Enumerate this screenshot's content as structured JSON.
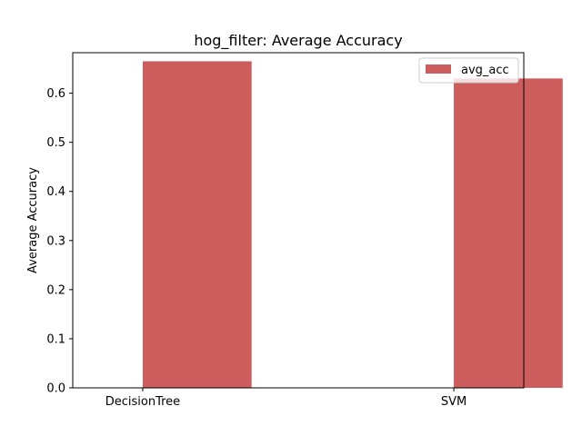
{
  "chart_data": {
    "type": "bar",
    "title": "hog_filter: Average Accuracy",
    "xlabel": "",
    "ylabel": "Average Accuracy",
    "categories": [
      "DecisionTree",
      "SVM"
    ],
    "series": [
      {
        "name": "avg_acc",
        "values": [
          0.665,
          0.63
        ],
        "color": "#cd5c5c"
      }
    ],
    "ylim": [
      0,
      0.6825
    ],
    "yticks": [
      0.0,
      0.1,
      0.2,
      0.3,
      0.4,
      0.5,
      0.6
    ],
    "ytick_labels": [
      "0.0",
      "0.1",
      "0.2",
      "0.3",
      "0.4",
      "0.5",
      "0.6"
    ],
    "grid": false,
    "legend_position": "top-right"
  }
}
